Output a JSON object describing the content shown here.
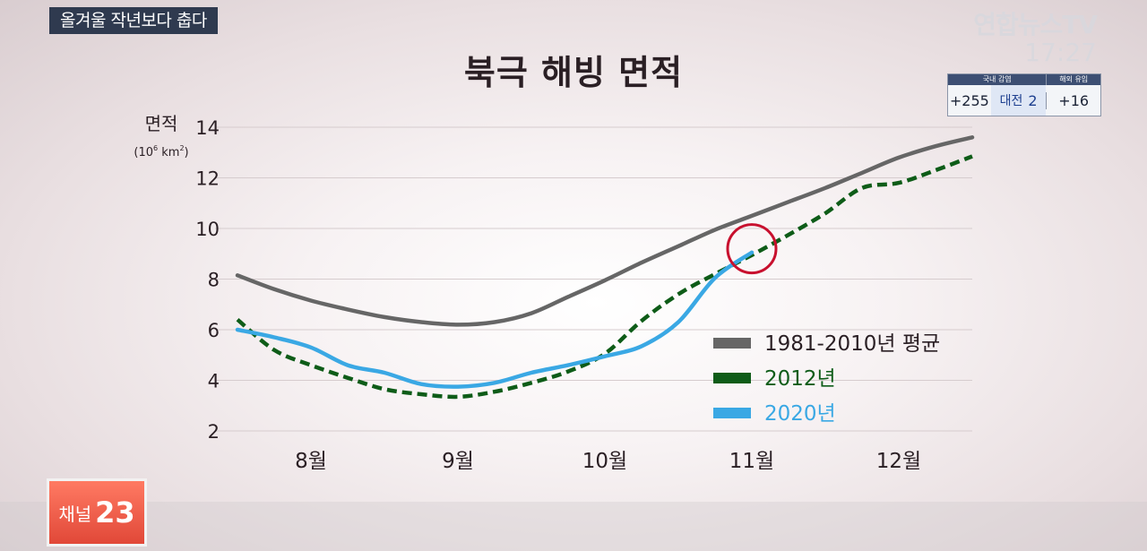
{
  "top_caption": "올겨울 작년보다 춥다",
  "broadcaster": {
    "name": "연합뉴스TV",
    "clock": "17:27"
  },
  "covid_box": {
    "domestic_header": "국내 감염",
    "overseas_header": "해외 유입",
    "domestic_total": "+255",
    "region_name": "대전",
    "region_count": "2",
    "overseas_total": "+16",
    "header_color": "#3d4f73"
  },
  "channel_badge": {
    "label": "채널",
    "number": "23"
  },
  "chart_data": {
    "type": "line",
    "title": "북극 해빙 면적",
    "ylabel": "면적",
    "yunit_base": "(10",
    "yunit_exp": "6",
    "yunit_rest": " km",
    "yunit_exp2": "2",
    "yunit_close": ")",
    "ylim": [
      2,
      14
    ],
    "yticks": [
      "14",
      "12",
      "10",
      "8",
      "6",
      "4",
      "2"
    ],
    "ytick_values": [
      14,
      12,
      10,
      8,
      6,
      4,
      2
    ],
    "xlim": [
      0,
      5
    ],
    "xticks": [
      "8월",
      "9월",
      "10월",
      "11월",
      "12월"
    ],
    "xtick_values": [
      0.5,
      1.5,
      2.5,
      3.5,
      4.5
    ],
    "grid": true,
    "legend_placement": "lower-right",
    "highlight_circle": {
      "x": 3.5,
      "y": 9.2
    },
    "series": [
      {
        "name": "1981-2010년 평균",
        "color": "#666666",
        "style": "solid",
        "x": [
          0,
          0.25,
          0.5,
          0.75,
          1.0,
          1.25,
          1.5,
          1.75,
          2.0,
          2.25,
          2.5,
          2.75,
          3.0,
          3.25,
          3.5,
          3.75,
          4.0,
          4.25,
          4.5,
          4.75,
          5.0
        ],
        "values": [
          8.15,
          7.6,
          7.15,
          6.8,
          6.5,
          6.3,
          6.2,
          6.3,
          6.65,
          7.3,
          7.95,
          8.65,
          9.3,
          9.95,
          10.5,
          11.05,
          11.6,
          12.2,
          12.8,
          13.25,
          13.6
        ]
      },
      {
        "name": "2012년",
        "color": "#0e5c18",
        "style": "dashed",
        "x": [
          0,
          0.25,
          0.5,
          0.75,
          1.0,
          1.25,
          1.5,
          1.75,
          2.0,
          2.25,
          2.5,
          2.75,
          3.0,
          3.25,
          3.5,
          3.75,
          4.0,
          4.25,
          4.5,
          4.75,
          5.0
        ],
        "values": [
          6.4,
          5.2,
          4.6,
          4.1,
          3.65,
          3.45,
          3.35,
          3.55,
          3.9,
          4.35,
          5.05,
          6.35,
          7.4,
          8.2,
          8.95,
          9.75,
          10.6,
          11.6,
          11.8,
          12.3,
          12.85
        ]
      },
      {
        "name": "2020년",
        "color": "#3aa8e4",
        "style": "solid",
        "x": [
          0,
          0.25,
          0.5,
          0.75,
          1.0,
          1.25,
          1.5,
          1.75,
          2.0,
          2.25,
          2.5,
          2.75,
          3.0,
          3.25,
          3.5
        ],
        "values": [
          6.0,
          5.7,
          5.3,
          4.6,
          4.3,
          3.85,
          3.75,
          3.9,
          4.3,
          4.6,
          4.95,
          5.35,
          6.3,
          8.05,
          9.05
        ]
      }
    ]
  }
}
